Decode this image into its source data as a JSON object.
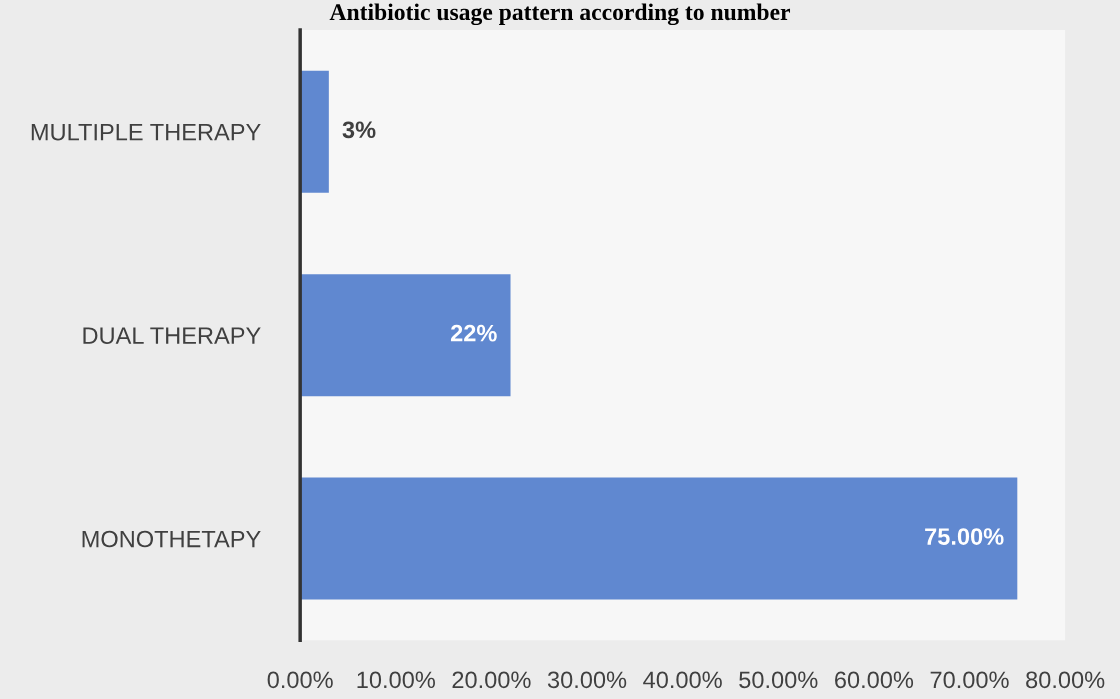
{
  "chart_data": {
    "type": "bar",
    "orientation": "horizontal",
    "title": "Antibiotic usage pattern according to number",
    "categories": [
      "MULTIPLE THERAPY",
      "DUAL THERAPY",
      "MONOTHETAPY"
    ],
    "values": [
      3,
      22,
      75
    ],
    "color": "#6088d0",
    "value_labels": [
      "3%",
      "22%",
      "75.00%"
    ],
    "xlim": [
      0,
      80
    ],
    "xticks": [
      {
        "value": 0,
        "label": "0.00%"
      },
      {
        "value": 10,
        "label": "10.00%"
      },
      {
        "value": 20,
        "label": "20.00%"
      },
      {
        "value": 30,
        "label": "30.00%"
      },
      {
        "value": 40,
        "label": "40.00%"
      },
      {
        "value": 50,
        "label": "50.00%"
      },
      {
        "value": 60,
        "label": "60.00%"
      },
      {
        "value": 70,
        "label": "70.00%"
      },
      {
        "value": 80,
        "label": "80.00%"
      }
    ],
    "grid": false,
    "legend": false
  }
}
